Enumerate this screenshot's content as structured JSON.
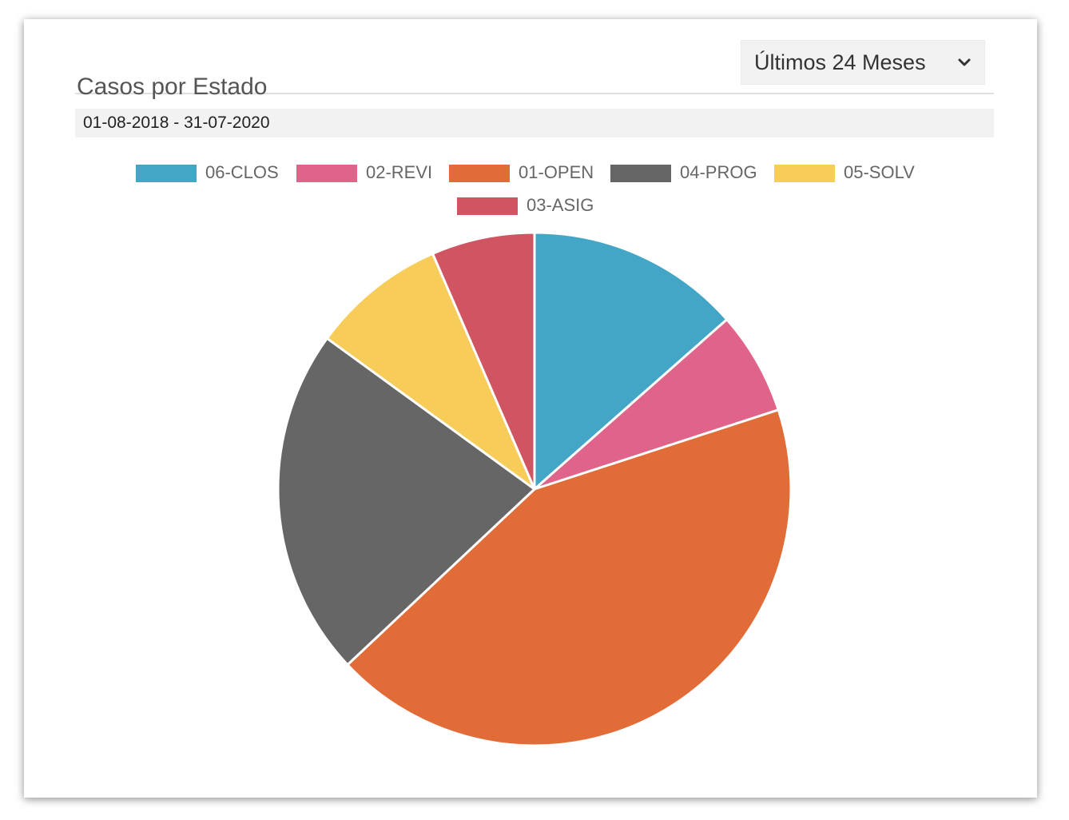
{
  "card": {
    "title": "Casos por Estado",
    "period_select": {
      "selected": "Últimos 24 Meses",
      "icon": "chevron-down-icon"
    },
    "date_range": "01-08-2018 - 31-07-2020"
  },
  "chart_data": {
    "type": "pie",
    "title": "",
    "legend_position": "top",
    "categories": [
      "06-CLOS",
      "02-REVI",
      "01-OPEN",
      "04-PROG",
      "05-SOLV",
      "03-ASIG"
    ],
    "values": [
      13.5,
      6.5,
      43,
      22,
      8.5,
      6.5
    ],
    "colors": [
      "#44a6c6",
      "#e0648a",
      "#e16c37",
      "#666666",
      "#f8cc59",
      "#d05461"
    ]
  }
}
